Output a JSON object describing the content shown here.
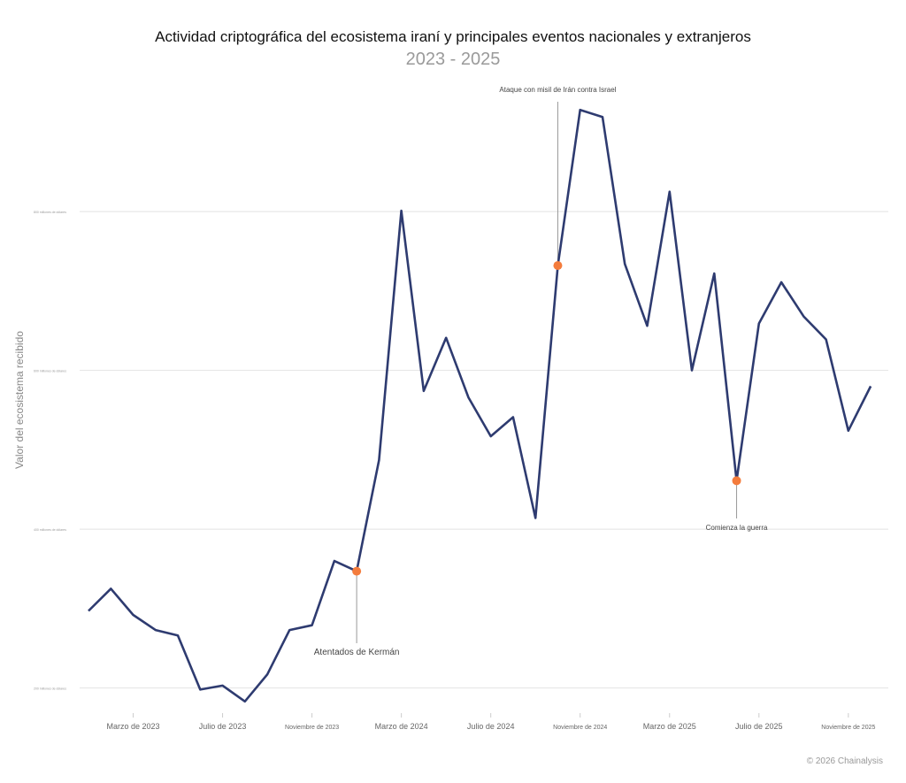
{
  "chart_data": {
    "type": "line",
    "title": "Actividad criptográfica del ecosistema iraní y principales eventos nacionales y extranjeros",
    "subtitle": "2023 - 2025",
    "ylabel": "Valor del ecosistema recibido",
    "xlabel": "",
    "ylim": [
      175,
      955
    ],
    "grid": true,
    "yticks": [
      {
        "value": 200,
        "label": "200 millones de dólares"
      },
      {
        "value": 400,
        "label": "400 millones de dólares"
      },
      {
        "value": 600,
        "label": "600 millones de dólares"
      },
      {
        "value": 800,
        "label": "800 millones de dólares"
      }
    ],
    "xticks": [
      {
        "x": "2023-03",
        "label": "Marzo de 2023"
      },
      {
        "x": "2023-07",
        "label": "Julio de 2023"
      },
      {
        "x": "2023-11",
        "label": "Noviembre de 2023"
      },
      {
        "x": "2024-03",
        "label": "Marzo de 2024"
      },
      {
        "x": "2024-07",
        "label": "Julio de 2024"
      },
      {
        "x": "2024-11",
        "label": "Noviembre de 2024"
      },
      {
        "x": "2025-03",
        "label": "Marzo de 2025"
      },
      {
        "x": "2025-07",
        "label": "Julio de 2025"
      },
      {
        "x": "2025-11",
        "label": "Noviembre de 2025"
      }
    ],
    "x": [
      "2023-01",
      "2023-02",
      "2023-03",
      "2023-04",
      "2023-05",
      "2023-06",
      "2023-07",
      "2023-08",
      "2023-09",
      "2023-10",
      "2023-11",
      "2023-12",
      "2024-01",
      "2024-02",
      "2024-03",
      "2024-04",
      "2024-05",
      "2024-06",
      "2024-07",
      "2024-08",
      "2024-09",
      "2024-10",
      "2024-11",
      "2024-12",
      "2025-01",
      "2025-02",
      "2025-03",
      "2025-04",
      "2025-05",
      "2025-06",
      "2025-07",
      "2025-08",
      "2025-09",
      "2025-10",
      "2025-11",
      "2025-12"
    ],
    "values": [
      297,
      325,
      292,
      273,
      266,
      198,
      203,
      183,
      217,
      273,
      279,
      360,
      347,
      487,
      801,
      574,
      641,
      566,
      517,
      541,
      414,
      732,
      928,
      919,
      734,
      656,
      825,
      600,
      722,
      461,
      659,
      711,
      668,
      639,
      524,
      580
    ],
    "annotations": [
      {
        "x": "2024-01",
        "label": "Atentados de Kermán",
        "position": "below"
      },
      {
        "x": "2024-10",
        "label": "Ataque con misil de Irán contra Israel",
        "position": "above"
      },
      {
        "x": "2025-06",
        "label": "Comienza la guerra",
        "position": "below"
      }
    ],
    "colors": {
      "line": "#2e3b70",
      "marker": "#f47c3c",
      "grid": "#e2e2e2"
    }
  },
  "credit": "© 2026 Chainalysis"
}
